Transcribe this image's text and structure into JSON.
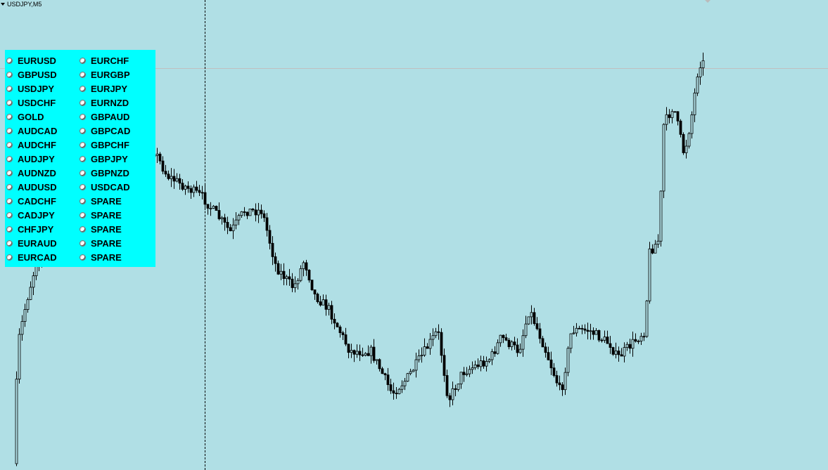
{
  "window": {
    "title": "USDJPY,M5"
  },
  "colors": {
    "background": "#b0dfe5",
    "panel": "#00ffff",
    "candle_bull": "#b0dfe5",
    "candle_outline": "#000000"
  },
  "symbol_panel": {
    "column1": [
      "EURUSD",
      "GBPUSD",
      "USDJPY",
      "USDCHF",
      "GOLD",
      "AUDCAD",
      "AUDCHF",
      "AUDJPY",
      "AUDNZD",
      "AUDUSD",
      "CADCHF",
      "CADJPY",
      "CHFJPY",
      "EURAUD",
      "EURCAD"
    ],
    "column2": [
      "EURCHF",
      "EURGBP",
      "EURJPY",
      "EURNZD",
      "GBPAUD",
      "GBPCAD",
      "GBPCHF",
      "GBPJPY",
      "GBPNZD",
      "USDCAD",
      "SPARE",
      "SPARE",
      "SPARE",
      "SPARE",
      "SPARE"
    ]
  }
}
